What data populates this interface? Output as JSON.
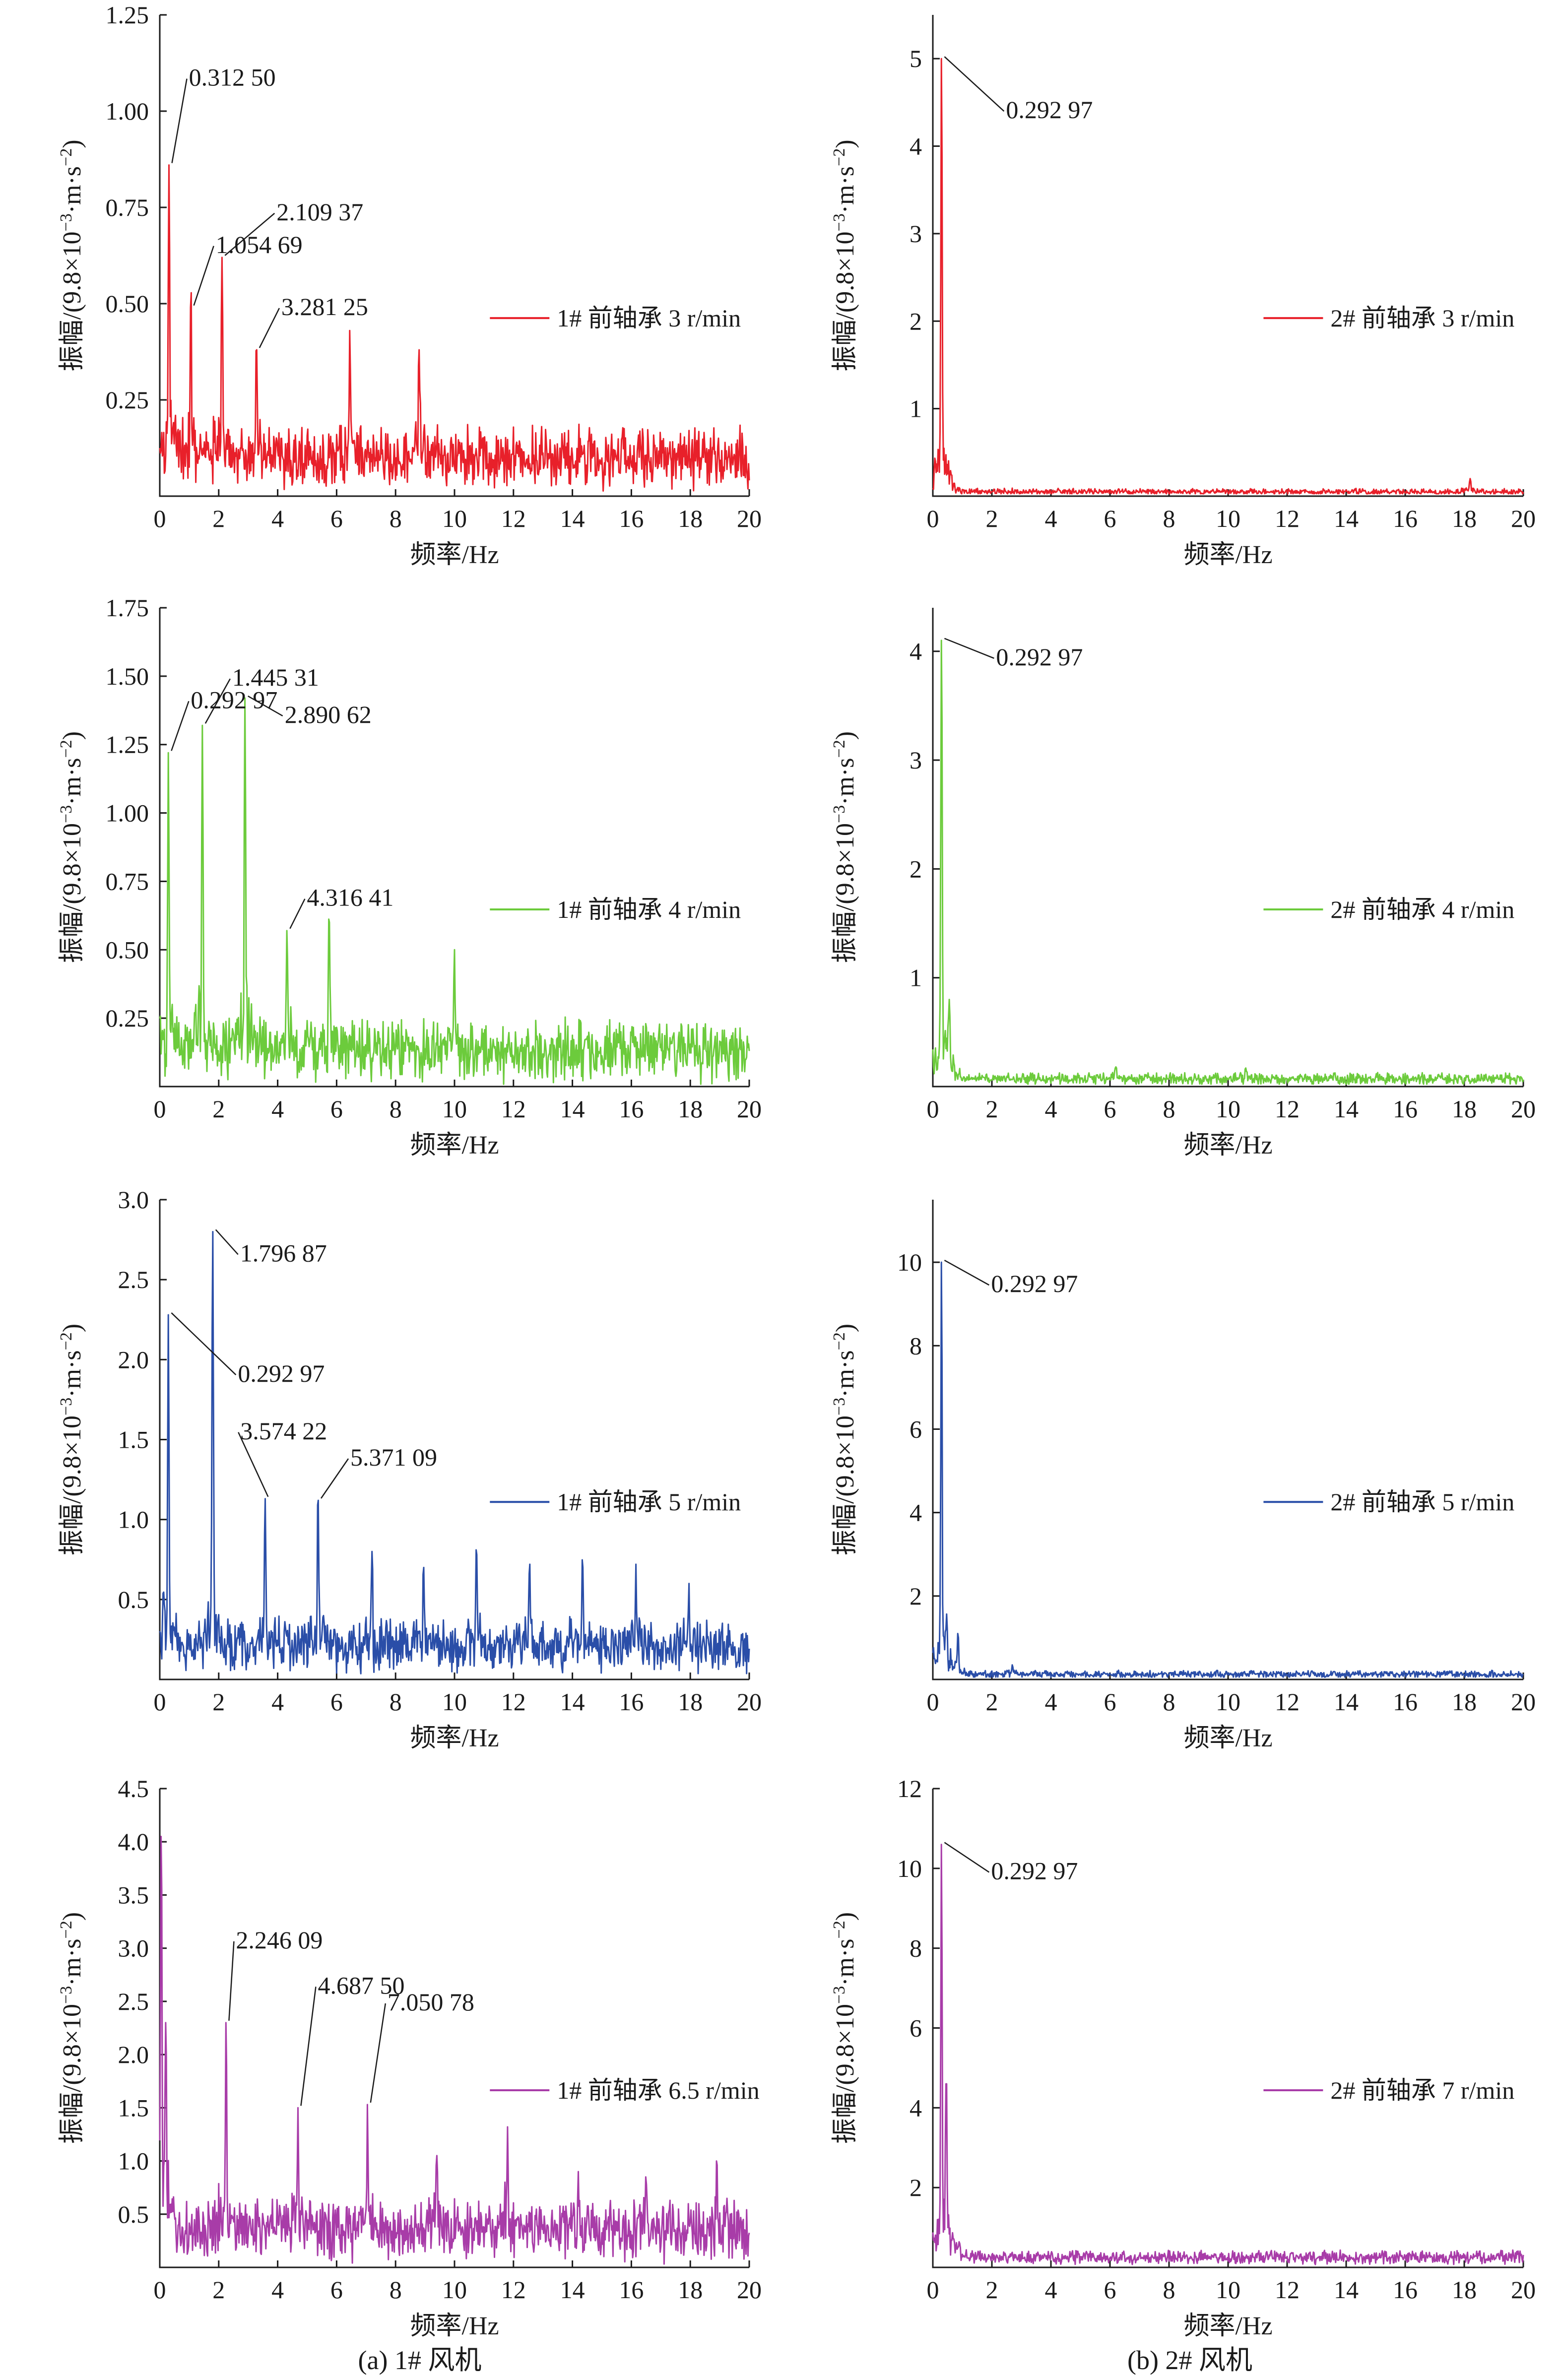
{
  "figure": {
    "captions": [
      "(a) 1# 风机",
      "(b) 2# 风机"
    ]
  },
  "colors": {
    "red": "#e8202a",
    "green": "#6ccb3c",
    "blue": "#2a4ea8",
    "purple": "#a83ca8"
  },
  "chart_data": [
    {
      "type": "line",
      "panel": "a1",
      "xlabel": "频率/Hz",
      "ylabel": "振幅/(9.8×10⁻³·m·s⁻²)",
      "xlim": [
        0,
        20
      ],
      "ylim": [
        0,
        1.25
      ],
      "xticks": [
        "0",
        "2",
        "4",
        "6",
        "8",
        "10",
        "12",
        "14",
        "16",
        "18",
        "20"
      ],
      "yticks": [
        "0.25",
        "0.50",
        "0.75",
        "1.00",
        "1.25"
      ],
      "ytick_values": [
        0.25,
        0.5,
        0.75,
        1.0,
        1.25
      ],
      "color": "#e8202a",
      "baseline": 0.1,
      "noise": 0.05,
      "legend": {
        "label": "1# 前轴承 3 r/min",
        "placement": "right-middle"
      },
      "peaks": [
        {
          "x": 0.3125,
          "y": 0.86,
          "label": "0.312 50"
        },
        {
          "x": 1.05469,
          "y": 0.49,
          "label": "1.054 69"
        },
        {
          "x": 2.10937,
          "y": 0.62,
          "label": "2.109 37"
        },
        {
          "x": 3.28125,
          "y": 0.38,
          "label": "3.281 25"
        },
        {
          "x": 6.45,
          "y": 0.43
        },
        {
          "x": 8.8,
          "y": 0.38
        }
      ]
    },
    {
      "type": "line",
      "panel": "b1",
      "xlabel": "频率/Hz",
      "ylabel": "振幅/(9.8×10⁻³·m·s⁻²)",
      "xlim": [
        0,
        20
      ],
      "ylim": [
        0,
        5.5
      ],
      "xticks": [
        "0",
        "2",
        "4",
        "6",
        "8",
        "10",
        "12",
        "14",
        "16",
        "18",
        "20"
      ],
      "yticks": [
        "1",
        "2",
        "3",
        "4",
        "5"
      ],
      "ytick_values": [
        1,
        2,
        3,
        4,
        5
      ],
      "color": "#e8202a",
      "baseline": 0.05,
      "noise": 0.02,
      "legend": {
        "label": "2# 前轴承 3 r/min",
        "placement": "right-middle"
      },
      "peaks": [
        {
          "x": 0.29297,
          "y": 5.0,
          "label": "0.292 97"
        },
        {
          "x": 18.2,
          "y": 0.2
        }
      ]
    },
    {
      "type": "line",
      "panel": "a2",
      "xlabel": "频率/Hz",
      "ylabel": "振幅/(9.8×10⁻³·m·s⁻²)",
      "xlim": [
        0,
        20
      ],
      "ylim": [
        0,
        1.75
      ],
      "xticks": [
        "0",
        "2",
        "4",
        "6",
        "8",
        "10",
        "12",
        "14",
        "16",
        "18",
        "20"
      ],
      "yticks": [
        "0.25",
        "0.50",
        "0.75",
        "1.00",
        "1.25",
        "1.50",
        "1.75"
      ],
      "ytick_values": [
        0.25,
        0.5,
        0.75,
        1.0,
        1.25,
        1.5,
        1.75
      ],
      "color": "#6ccb3c",
      "baseline": 0.13,
      "noise": 0.07,
      "legend": {
        "label": "1# 前轴承 4 r/min",
        "placement": "right-middle"
      },
      "peaks": [
        {
          "x": 0.29297,
          "y": 1.22,
          "label": "0.292 97"
        },
        {
          "x": 1.44531,
          "y": 1.32,
          "label": "1.445 31"
        },
        {
          "x": 2.89062,
          "y": 1.42,
          "label": "2.890 62"
        },
        {
          "x": 4.31641,
          "y": 0.57,
          "label": "4.316 41"
        },
        {
          "x": 5.75,
          "y": 0.6
        },
        {
          "x": 10.0,
          "y": 0.5
        }
      ]
    },
    {
      "type": "line",
      "panel": "b2",
      "xlabel": "频率/Hz",
      "ylabel": "振幅/(9.8×10⁻³·m·s⁻²)",
      "xlim": [
        0,
        20
      ],
      "ylim": [
        0,
        4.4
      ],
      "xticks": [
        "0",
        "2",
        "4",
        "6",
        "8",
        "10",
        "12",
        "14",
        "16",
        "18",
        "20"
      ],
      "yticks": [
        "1",
        "2",
        "3",
        "4"
      ],
      "ytick_values": [
        1,
        2,
        3,
        4
      ],
      "color": "#6ccb3c",
      "baseline": 0.07,
      "noise": 0.03,
      "legend": {
        "label": "2# 前轴承 4 r/min",
        "placement": "right-middle"
      },
      "peaks": [
        {
          "x": 0.29297,
          "y": 4.1,
          "label": "0.292 97"
        },
        {
          "x": 0.55,
          "y": 0.8
        },
        {
          "x": 6.2,
          "y": 0.18
        },
        {
          "x": 10.6,
          "y": 0.17
        }
      ]
    },
    {
      "type": "line",
      "panel": "a3",
      "xlabel": "频率/Hz",
      "ylabel": "振幅/(9.8×10⁻³·m·s⁻²)",
      "xlim": [
        0,
        20
      ],
      "ylim": [
        0,
        3.0
      ],
      "xticks": [
        "0",
        "2",
        "4",
        "6",
        "8",
        "10",
        "12",
        "14",
        "16",
        "18",
        "20"
      ],
      "yticks": [
        "0.5",
        "1.0",
        "1.5",
        "2.0",
        "2.5",
        "3.0"
      ],
      "ytick_values": [
        0.5,
        1.0,
        1.5,
        2.0,
        2.5,
        3.0
      ],
      "color": "#2a4ea8",
      "baseline": 0.2,
      "noise": 0.1,
      "legend": {
        "label": "1# 前轴承 5 r/min",
        "placement": "right-middle"
      },
      "peaks": [
        {
          "x": 0.29297,
          "y": 2.28,
          "label": "0.292 97"
        },
        {
          "x": 1.79687,
          "y": 2.8,
          "label": "1.796 87"
        },
        {
          "x": 3.57422,
          "y": 1.13,
          "label": "3.574 22"
        },
        {
          "x": 5.37109,
          "y": 1.12,
          "label": "5.371 09"
        },
        {
          "x": 7.2,
          "y": 0.8
        },
        {
          "x": 8.95,
          "y": 0.7
        },
        {
          "x": 10.75,
          "y": 0.78
        },
        {
          "x": 12.55,
          "y": 0.72
        },
        {
          "x": 14.35,
          "y": 0.7
        },
        {
          "x": 16.15,
          "y": 0.72
        },
        {
          "x": 17.95,
          "y": 0.6
        }
      ]
    },
    {
      "type": "line",
      "panel": "b3",
      "xlabel": "频率/Hz",
      "ylabel": "振幅/(9.8×10⁻³·m·s⁻²)",
      "xlim": [
        0,
        20
      ],
      "ylim": [
        0,
        11.5
      ],
      "xticks": [
        "0",
        "2",
        "4",
        "6",
        "8",
        "10",
        "12",
        "14",
        "16",
        "18",
        "20"
      ],
      "yticks": [
        "2",
        "4",
        "6",
        "8",
        "10"
      ],
      "ytick_values": [
        2,
        4,
        6,
        8,
        10
      ],
      "color": "#2a4ea8",
      "baseline": 0.12,
      "noise": 0.05,
      "legend": {
        "label": "2# 前轴承 5 r/min",
        "placement": "right-middle"
      },
      "peaks": [
        {
          "x": 0.29297,
          "y": 10.0,
          "label": "0.292 97"
        },
        {
          "x": 0.45,
          "y": 1.2
        },
        {
          "x": 0.85,
          "y": 1.1
        },
        {
          "x": 2.7,
          "y": 0.35
        }
      ]
    },
    {
      "type": "line",
      "panel": "a4",
      "xlabel": "频率/Hz",
      "ylabel": "振幅/(9.8×10⁻³·m·s⁻²)",
      "xlim": [
        0,
        20
      ],
      "ylim": [
        0,
        4.5
      ],
      "xticks": [
        "0",
        "2",
        "4",
        "6",
        "8",
        "10",
        "12",
        "14",
        "16",
        "18",
        "20"
      ],
      "yticks": [
        "0.5",
        "1.0",
        "1.5",
        "2.0",
        "2.5",
        "3.0",
        "3.5",
        "4.0",
        "4.5"
      ],
      "ytick_values": [
        0.5,
        1.0,
        1.5,
        2.0,
        2.5,
        3.0,
        3.5,
        4.0,
        4.5
      ],
      "color": "#a83ca8",
      "baseline": 0.35,
      "noise": 0.18,
      "legend": {
        "label": "1# 前轴承 6.5 r/min",
        "placement": "right-middle"
      },
      "peaks": [
        {
          "x": 0.05,
          "y": 4.05
        },
        {
          "x": 0.2,
          "y": 2.3
        },
        {
          "x": 2.24609,
          "y": 2.3,
          "label": "2.246 09"
        },
        {
          "x": 4.6875,
          "y": 1.5,
          "label": "4.687 50"
        },
        {
          "x": 7.05078,
          "y": 1.53,
          "label": "7.050 78"
        },
        {
          "x": 9.4,
          "y": 1.05
        },
        {
          "x": 11.8,
          "y": 1.32
        },
        {
          "x": 14.2,
          "y": 0.9
        },
        {
          "x": 16.5,
          "y": 0.85
        },
        {
          "x": 18.9,
          "y": 1.0
        }
      ]
    },
    {
      "type": "line",
      "panel": "b4",
      "xlabel": "频率/Hz",
      "ylabel": "振幅/(9.8×10⁻³·m·s⁻²)",
      "xlim": [
        0,
        20
      ],
      "ylim": [
        0,
        12
      ],
      "xticks": [
        "0",
        "2",
        "4",
        "6",
        "8",
        "10",
        "12",
        "14",
        "16",
        "18",
        "20"
      ],
      "yticks": [
        "2",
        "4",
        "6",
        "8",
        "10",
        "12"
      ],
      "ytick_values": [
        2,
        4,
        6,
        8,
        10,
        12
      ],
      "color": "#a83ca8",
      "baseline": 0.25,
      "noise": 0.08,
      "legend": {
        "label": "2# 前轴承 7 r/min",
        "placement": "right-middle"
      },
      "peaks": [
        {
          "x": 0.29297,
          "y": 10.6,
          "label": "0.292 97"
        },
        {
          "x": 0.45,
          "y": 4.6
        },
        {
          "x": 0.9,
          "y": 0.6
        }
      ]
    }
  ]
}
